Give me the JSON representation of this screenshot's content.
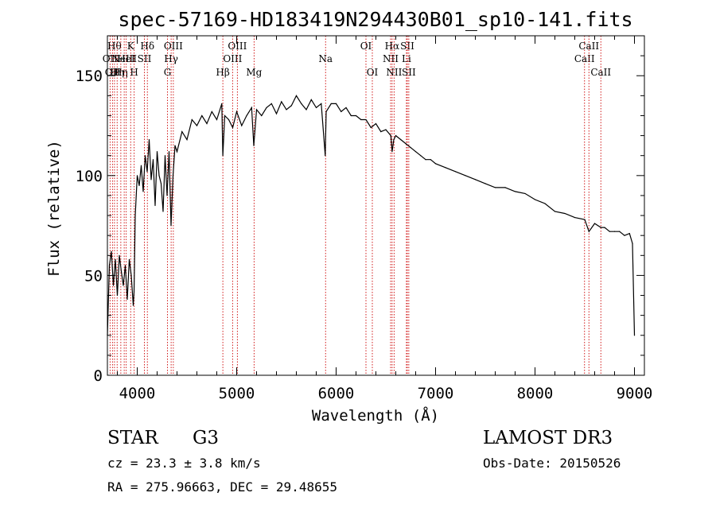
{
  "chart_data": {
    "type": "line",
    "title": "spec-57169-HD183419N294430B01_sp10-141.fits",
    "xlabel": "Wavelength (Å)",
    "ylabel": "Flux (relative)",
    "xlim": [
      3700,
      9100
    ],
    "ylim": [
      0,
      170
    ],
    "xticks": [
      4000,
      5000,
      6000,
      7000,
      8000,
      9000
    ],
    "yticks": [
      0,
      50,
      100,
      150
    ],
    "series": [
      {
        "name": "spectrum",
        "x": [
          3700,
          3720,
          3740,
          3760,
          3780,
          3800,
          3820,
          3840,
          3860,
          3880,
          3900,
          3920,
          3940,
          3960,
          3968,
          3980,
          4000,
          4020,
          4040,
          4060,
          4080,
          4100,
          4120,
          4140,
          4160,
          4180,
          4200,
          4220,
          4240,
          4260,
          4280,
          4300,
          4320,
          4340,
          4360,
          4380,
          4400,
          4450,
          4500,
          4550,
          4600,
          4650,
          4700,
          4750,
          4800,
          4850,
          4861,
          4880,
          4920,
          4960,
          5000,
          5050,
          5100,
          5150,
          5172,
          5200,
          5250,
          5300,
          5350,
          5400,
          5450,
          5500,
          5550,
          5580,
          5600,
          5650,
          5700,
          5750,
          5800,
          5850,
          5890,
          5900,
          5950,
          6000,
          6050,
          6100,
          6150,
          6200,
          6250,
          6300,
          6350,
          6400,
          6450,
          6500,
          6550,
          6563,
          6580,
          6600,
          6650,
          6700,
          6750,
          6800,
          6850,
          6900,
          6950,
          7000,
          7100,
          7200,
          7300,
          7400,
          7500,
          7600,
          7700,
          7800,
          7900,
          8000,
          8100,
          8200,
          8300,
          8400,
          8500,
          8542,
          8600,
          8662,
          8700,
          8750,
          8800,
          8850,
          8900,
          8950,
          8980,
          9000
        ],
        "values": [
          20,
          55,
          62,
          45,
          58,
          40,
          60,
          52,
          45,
          55,
          38,
          58,
          50,
          35,
          42,
          80,
          100,
          95,
          105,
          92,
          110,
          102,
          118,
          98,
          108,
          85,
          112,
          100,
          96,
          82,
          110,
          90,
          112,
          75,
          100,
          115,
          112,
          122,
          118,
          128,
          125,
          130,
          126,
          132,
          128,
          136,
          110,
          130,
          128,
          124,
          132,
          125,
          130,
          134,
          115,
          133,
          130,
          134,
          136,
          131,
          137,
          133,
          135,
          138,
          140,
          136,
          133,
          138,
          134,
          136,
          110,
          132,
          136,
          136,
          132,
          134,
          130,
          130,
          128,
          128,
          124,
          126,
          122,
          123,
          120,
          112,
          118,
          120,
          118,
          116,
          114,
          112,
          110,
          108,
          108,
          106,
          104,
          102,
          100,
          98,
          96,
          94,
          94,
          92,
          91,
          88,
          86,
          82,
          81,
          79,
          78,
          72,
          76,
          74,
          74,
          72,
          72,
          72,
          70,
          71,
          66,
          20
        ]
      }
    ],
    "line_markers": [
      {
        "wl": 3727,
        "label": "OII",
        "row": 2
      },
      {
        "wl": 3751,
        "label": "OII",
        "row": 3
      },
      {
        "wl": 3771,
        "label": "Hθ",
        "row": 1
      },
      {
        "wl": 3798,
        "label": "Hη",
        "row": 3
      },
      {
        "wl": 3835,
        "label": "Hη",
        "row": 3
      },
      {
        "wl": 3869,
        "label": "NeIII",
        "row": 2
      },
      {
        "wl": 3889,
        "label": "HeI",
        "row": 2
      },
      {
        "wl": 3934,
        "label": "K",
        "row": 1
      },
      {
        "wl": 3969,
        "label": "H",
        "row": 3
      },
      {
        "wl": 4072,
        "label": "SII",
        "row": 2
      },
      {
        "wl": 4102,
        "label": "Hδ",
        "row": 1
      },
      {
        "wl": 4304,
        "label": "G",
        "row": 3
      },
      {
        "wl": 4341,
        "label": "Hγ",
        "row": 2
      },
      {
        "wl": 4363,
        "label": "OIII",
        "row": 1
      },
      {
        "wl": 4861,
        "label": "Hβ",
        "row": 3
      },
      {
        "wl": 4959,
        "label": "OIII",
        "row": 2
      },
      {
        "wl": 5007,
        "label": "OIII",
        "row": 1
      },
      {
        "wl": 5175,
        "label": "Mg",
        "row": 3
      },
      {
        "wl": 5894,
        "label": "Na",
        "row": 2
      },
      {
        "wl": 6300,
        "label": "OI",
        "row": 1
      },
      {
        "wl": 6364,
        "label": "OI",
        "row": 3
      },
      {
        "wl": 6548,
        "label": "NII",
        "row": 2
      },
      {
        "wl": 6563,
        "label": "Hα",
        "row": 1
      },
      {
        "wl": 6583,
        "label": "NII",
        "row": 3
      },
      {
        "wl": 6707,
        "label": "Li",
        "row": 2
      },
      {
        "wl": 6716,
        "label": "SII",
        "row": 1
      },
      {
        "wl": 6731,
        "label": "SII",
        "row": 3
      },
      {
        "wl": 8498,
        "label": "CaII",
        "row": 2
      },
      {
        "wl": 8542,
        "label": "CaII",
        "row": 1
      },
      {
        "wl": 8662,
        "label": "CaII",
        "row": 3
      }
    ]
  },
  "info": {
    "object_class": "STAR",
    "subclass": "G3",
    "survey": "LAMOST DR3",
    "redshift": "cz = 23.3 ± 3.8 km/s",
    "obs_date": "Obs-Date: 20150526",
    "coords": "RA = 275.96663, DEC =  29.48655"
  }
}
